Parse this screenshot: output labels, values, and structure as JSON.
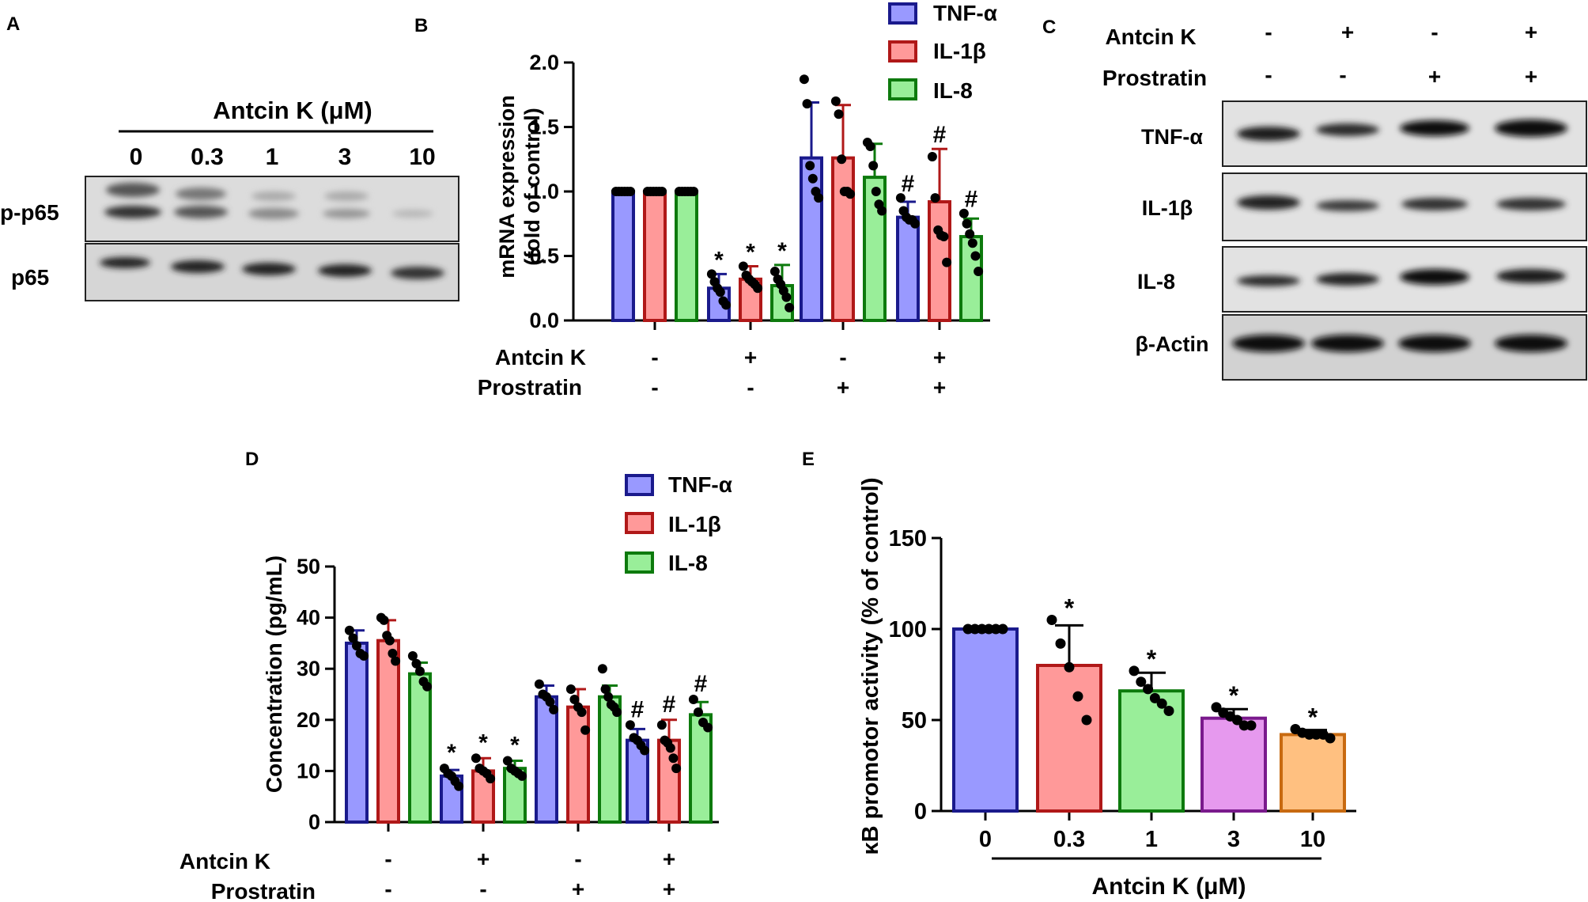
{
  "panel_labels": {
    "A": "A",
    "B": "B",
    "C": "C",
    "D": "D",
    "E": "E"
  },
  "colors": {
    "tnf_fill": "#9999ff",
    "tnf_stroke": "#1a1a8c",
    "il1b_fill": "#ff9999",
    "il1b_stroke": "#b01818",
    "il8_fill": "#99ee99",
    "il8_stroke": "#0d7a0d",
    "e_fills": [
      "#9999ff",
      "#ff9999",
      "#99ee99",
      "#e699ee",
      "#ffc080"
    ],
    "e_strokes": [
      "#1a1a8c",
      "#b01818",
      "#0d7a0d",
      "#7a1a8c",
      "#c86a10"
    ]
  },
  "blot_a": {
    "title": "Antcin K (μM)",
    "doses": [
      "0",
      "0.3",
      "1",
      "3",
      "10"
    ],
    "rows": [
      "p-p65",
      "p65"
    ]
  },
  "blot_c": {
    "conditions": [
      {
        "label": "Antcin K",
        "signs": [
          "-",
          "+",
          "-",
          "+"
        ]
      },
      {
        "label": "Prostratin",
        "signs": [
          "-",
          "-",
          "+",
          "+"
        ]
      }
    ],
    "rows": [
      "TNF-α",
      "IL-1β",
      "IL-8",
      "β-Actin"
    ]
  },
  "chart_data": [
    {
      "panel": "B",
      "type": "bar",
      "ylabel_line1": "mRNA expression",
      "ylabel_line2": "(fold of control)",
      "ylim": [
        0,
        2.0
      ],
      "yticks": [
        "0.0",
        "0.5",
        "1.0",
        "1.5",
        "2.0"
      ],
      "legend": [
        "TNF-α",
        "IL-1β",
        "IL-8"
      ],
      "treatment_rows": [
        {
          "label": "Antcin K",
          "signs": [
            "-",
            "+",
            "-",
            "+"
          ]
        },
        {
          "label": "Prostratin",
          "signs": [
            "-",
            "-",
            "+",
            "+"
          ]
        }
      ],
      "series": [
        {
          "name": "TNF-α",
          "values": [
            1.0,
            0.25,
            1.26,
            0.8
          ],
          "errors": [
            0,
            0.11,
            0.43,
            0.12
          ],
          "marks": [
            "",
            "*",
            "",
            "#"
          ],
          "points": [
            [
              1,
              1,
              1,
              1,
              1,
              1
            ],
            [
              0.36,
              0.3,
              0.25,
              0.22,
              0.15,
              0.12
            ],
            [
              1.87,
              1.68,
              1.2,
              1.1,
              1.0,
              0.95
            ],
            [
              0.95,
              0.85,
              0.8,
              0.78,
              0.78,
              0.75
            ]
          ]
        },
        {
          "name": "IL-1β",
          "values": [
            1.0,
            0.32,
            1.26,
            0.92
          ],
          "errors": [
            0,
            0.1,
            0.41,
            0.41
          ],
          "marks": [
            "",
            "*",
            "",
            "#"
          ],
          "points": [
            [
              1,
              1,
              1,
              1,
              1,
              1
            ],
            [
              0.42,
              0.35,
              0.32,
              0.3,
              0.28,
              0.25
            ],
            [
              1.7,
              1.6,
              1.25,
              1.0,
              1.0,
              0.98
            ],
            [
              1.27,
              0.95,
              0.7,
              0.66,
              0.65,
              0.45
            ]
          ]
        },
        {
          "name": "IL-8",
          "values": [
            1.0,
            0.27,
            1.11,
            0.65
          ],
          "errors": [
            0,
            0.16,
            0.26,
            0.14
          ],
          "marks": [
            "",
            "*",
            "",
            "#"
          ],
          "points": [
            [
              1,
              1,
              1,
              1,
              1,
              1
            ],
            [
              0.38,
              0.32,
              0.28,
              0.23,
              0.18,
              0.1
            ],
            [
              1.38,
              1.35,
              1.2,
              1.0,
              0.9,
              0.85
            ],
            [
              0.83,
              0.75,
              0.67,
              0.6,
              0.5,
              0.38
            ]
          ]
        }
      ]
    },
    {
      "panel": "D",
      "type": "bar",
      "ylabel": "Concentration (pg/mL)",
      "ylim": [
        0,
        50
      ],
      "yticks": [
        "0",
        "10",
        "20",
        "30",
        "40",
        "50"
      ],
      "legend": [
        "TNF-α",
        "IL-1β",
        "IL-8"
      ],
      "treatment_rows": [
        {
          "label": "Antcin K",
          "signs": [
            "-",
            "+",
            "-",
            "+"
          ]
        },
        {
          "label": "Prostratin",
          "signs": [
            "-",
            "-",
            "+",
            "+"
          ]
        }
      ],
      "series": [
        {
          "name": "TNF-α",
          "values": [
            35,
            9,
            24.5,
            16
          ],
          "errors": [
            2.5,
            1.2,
            2.2,
            2.2
          ],
          "marks": [
            "",
            "*",
            "",
            "#"
          ],
          "points": [
            [
              37.5,
              36,
              34.5,
              33,
              32.5
            ],
            [
              10.5,
              9.5,
              9,
              8,
              7
            ],
            [
              27,
              25,
              24.5,
              23.5,
              22
            ],
            [
              19,
              16.5,
              16,
              15,
              14
            ]
          ]
        },
        {
          "name": "IL-1β",
          "values": [
            35.5,
            10,
            22.5,
            16
          ],
          "errors": [
            4,
            2.5,
            3.5,
            4
          ],
          "marks": [
            "",
            "*",
            "",
            "#"
          ],
          "points": [
            [
              40,
              39.5,
              36.5,
              35.5,
              33,
              31.5
            ],
            [
              12.5,
              10.5,
              10,
              9.5,
              8.5
            ],
            [
              26,
              24,
              22.5,
              21.5,
              18
            ],
            [
              19,
              16,
              15.5,
              14.5,
              12.5,
              10.5
            ]
          ]
        },
        {
          "name": "IL-8",
          "values": [
            29,
            10.5,
            24.5,
            21
          ],
          "errors": [
            2.2,
            1.5,
            2.2,
            2.5
          ],
          "marks": [
            "",
            "*",
            "",
            "#"
          ],
          "points": [
            [
              32.5,
              31,
              29.5,
              27.5,
              26.5
            ],
            [
              12,
              10.5,
              10,
              9.5,
              9
            ],
            [
              30,
              26,
              24.5,
              23,
              22.5,
              21.5
            ],
            [
              24,
              21.5,
              19.5,
              18.5
            ]
          ]
        }
      ]
    },
    {
      "panel": "E",
      "type": "bar",
      "ylabel": "κB promotor activity (% of control)",
      "xlabel": "Antcin K (μM)",
      "ylim": [
        0,
        150
      ],
      "yticks": [
        "0",
        "50",
        "100",
        "150"
      ],
      "categories": [
        "0",
        "0.3",
        "1",
        "3",
        "10"
      ],
      "values": [
        100,
        80,
        66,
        51,
        42
      ],
      "errors": [
        0,
        22,
        10,
        5,
        2.5
      ],
      "marks": [
        "",
        "*",
        "*",
        "*",
        "*"
      ],
      "points": [
        [
          100,
          100,
          100,
          100,
          100,
          100
        ],
        [
          105,
          92,
          79,
          63,
          50
        ],
        [
          77,
          71,
          67,
          62,
          59,
          55
        ],
        [
          57,
          54,
          52,
          50,
          47,
          47
        ],
        [
          45,
          43,
          42,
          42,
          42,
          40
        ]
      ]
    }
  ]
}
